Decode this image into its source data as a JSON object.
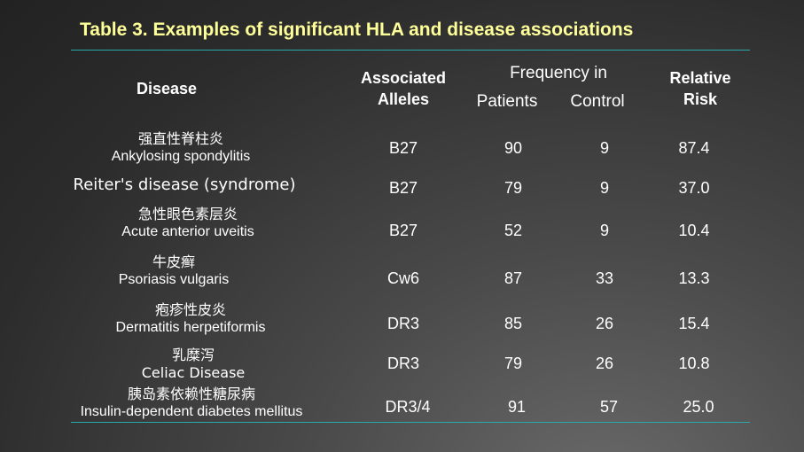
{
  "title": "Table 3. Examples of significant HLA and disease associations",
  "headers": {
    "disease": "Disease",
    "alleles": "Associated Alleles",
    "frequency": "Frequency in",
    "patients": "Patients",
    "control": "Control",
    "risk": "Relative Risk"
  },
  "rows": [
    {
      "cn": "强直性脊柱炎",
      "en": "Ankylosing spondylitis",
      "allele": "B27",
      "patients": "90",
      "control": "9",
      "risk": "87.4"
    },
    {
      "cn": "",
      "en": "Reiter's disease (syndrome)",
      "allele": "B27",
      "patients": "79",
      "control": "9",
      "risk": "37.0"
    },
    {
      "cn": "急性眼色素层炎",
      "en": "Acute anterior uveitis",
      "allele": "B27",
      "patients": "52",
      "control": "9",
      "risk": "10.4"
    },
    {
      "cn": "牛皮癣",
      "en": "Psoriasis vulgaris",
      "allele": "Cw6",
      "patients": "87",
      "control": "33",
      "risk": "13.3"
    },
    {
      "cn": "疱疹性皮炎",
      "en": "Dermatitis herpetiformis",
      "allele": "DR3",
      "patients": "85",
      "control": "26",
      "risk": "15.4"
    },
    {
      "cn": "乳糜泻",
      "en": "Celiac Disease",
      "allele": "DR3",
      "patients": "79",
      "control": "26",
      "risk": "10.8"
    },
    {
      "cn": "胰岛素依赖性糖尿病",
      "en": "Insulin-dependent diabetes mellitus",
      "allele": "DR3/4",
      "patients": "91",
      "control": "57",
      "risk": "25.0"
    }
  ]
}
